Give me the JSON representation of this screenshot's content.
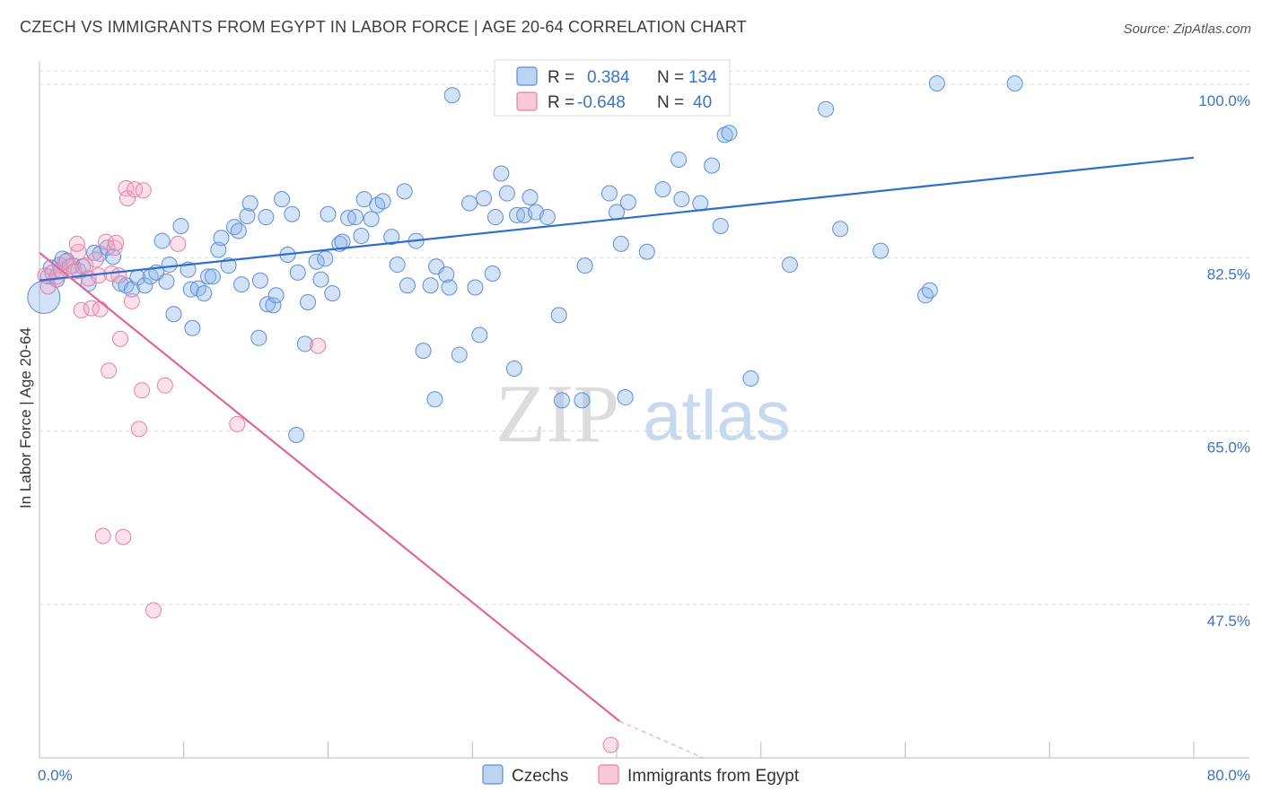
{
  "title": "CZECH VS IMMIGRANTS FROM EGYPT IN LABOR FORCE | AGE 20-64 CORRELATION CHART",
  "source": "Source: ZipAtlas.com",
  "watermark": {
    "zip": "ZIP",
    "atlas": "atlas"
  },
  "colors": {
    "czechs": "#5b8fd6",
    "egypt": "#e87fa6",
    "czechs_line": "#2f6fcc",
    "egypt_line": "#e0669a"
  },
  "chart_data": {
    "type": "scatter",
    "title": "CZECH VS IMMIGRANTS FROM EGYPT IN LABOR FORCE | AGE 20-64 CORRELATION CHART",
    "xlabel": "",
    "ylabel": "In Labor Force | Age 20-64",
    "xlim": [
      0,
      80
    ],
    "ylim": [
      32,
      102
    ],
    "x_tick_labels": [
      "0.0%",
      "80.0%"
    ],
    "y_ticks": [
      47.5,
      65.0,
      82.5,
      100.0
    ],
    "y_tick_labels": [
      "47.5%",
      "65.0%",
      "82.5%",
      "100.0%"
    ],
    "grid": true,
    "legend_placement": "top-center",
    "stats": [
      {
        "r_label": "R =",
        "r": "0.384",
        "n_label": "N =",
        "n": "134"
      },
      {
        "r_label": "R =",
        "r": "-0.648",
        "n_label": "N =",
        "n": "40"
      }
    ],
    "series": [
      {
        "name": "Czechs",
        "trend": {
          "x": [
            0,
            80
          ],
          "y": [
            80.2,
            92.6
          ]
        },
        "points": [
          [
            0.3,
            78.5
          ],
          [
            0.6,
            80.6
          ],
          [
            0.8,
            81.5
          ],
          [
            1.2,
            80.3
          ],
          [
            1.4,
            81.8
          ],
          [
            1.6,
            82.4
          ],
          [
            1.9,
            82.2
          ],
          [
            2.3,
            81.7
          ],
          [
            2.7,
            81.2
          ],
          [
            3.0,
            81.6
          ],
          [
            3.4,
            79.9
          ],
          [
            3.8,
            83.0
          ],
          [
            4.2,
            82.9
          ],
          [
            4.7,
            83.5
          ],
          [
            5.1,
            82.6
          ],
          [
            5.6,
            79.9
          ],
          [
            6.0,
            79.7
          ],
          [
            6.4,
            79.3
          ],
          [
            6.8,
            80.5
          ],
          [
            7.3,
            79.7
          ],
          [
            7.7,
            80.6
          ],
          [
            8.1,
            81.0
          ],
          [
            8.5,
            84.2
          ],
          [
            8.8,
            80.1
          ],
          [
            9.0,
            81.8
          ],
          [
            9.3,
            76.8
          ],
          [
            9.8,
            85.7
          ],
          [
            10.3,
            81.3
          ],
          [
            10.6,
            75.4
          ],
          [
            10.5,
            79.3
          ],
          [
            11.0,
            79.4
          ],
          [
            11.4,
            78.9
          ],
          [
            11.7,
            80.6
          ],
          [
            12.0,
            80.6
          ],
          [
            12.4,
            83.3
          ],
          [
            12.6,
            84.5
          ],
          [
            13.1,
            81.7
          ],
          [
            13.5,
            85.6
          ],
          [
            13.8,
            85.2
          ],
          [
            14.0,
            79.8
          ],
          [
            14.4,
            86.7
          ],
          [
            14.6,
            88.0
          ],
          [
            15.2,
            74.4
          ],
          [
            15.3,
            80.2
          ],
          [
            15.7,
            86.6
          ],
          [
            15.8,
            77.8
          ],
          [
            16.2,
            77.7
          ],
          [
            16.4,
            78.7
          ],
          [
            16.8,
            88.4
          ],
          [
            17.2,
            82.8
          ],
          [
            17.5,
            86.9
          ],
          [
            17.8,
            64.6
          ],
          [
            17.9,
            81.0
          ],
          [
            18.4,
            73.8
          ],
          [
            18.6,
            78.0
          ],
          [
            19.2,
            82.1
          ],
          [
            19.5,
            80.3
          ],
          [
            19.8,
            82.4
          ],
          [
            20.0,
            86.9
          ],
          [
            20.3,
            78.9
          ],
          [
            20.8,
            83.9
          ],
          [
            21.0,
            84.1
          ],
          [
            21.4,
            86.5
          ],
          [
            21.9,
            86.6
          ],
          [
            22.3,
            84.7
          ],
          [
            22.5,
            88.4
          ],
          [
            23.0,
            86.4
          ],
          [
            23.4,
            87.8
          ],
          [
            23.8,
            88.2
          ],
          [
            24.4,
            84.6
          ],
          [
            24.8,
            81.8
          ],
          [
            25.3,
            89.2
          ],
          [
            25.5,
            79.7
          ],
          [
            26.1,
            84.2
          ],
          [
            26.6,
            73.1
          ],
          [
            27.1,
            79.7
          ],
          [
            27.4,
            68.2
          ],
          [
            27.5,
            81.6
          ],
          [
            28.2,
            80.8
          ],
          [
            28.4,
            79.5
          ],
          [
            28.6,
            98.9
          ],
          [
            29.1,
            72.7
          ],
          [
            29.8,
            88.0
          ],
          [
            30.2,
            79.5
          ],
          [
            30.5,
            74.7
          ],
          [
            30.8,
            88.5
          ],
          [
            31.4,
            80.9
          ],
          [
            31.6,
            86.6
          ],
          [
            32.0,
            91.0
          ],
          [
            32.4,
            89.0
          ],
          [
            32.9,
            71.3
          ],
          [
            33.1,
            86.8
          ],
          [
            33.6,
            86.8
          ],
          [
            34.0,
            88.6
          ],
          [
            34.4,
            87.1
          ],
          [
            35.2,
            86.6
          ],
          [
            36.0,
            76.7
          ],
          [
            36.2,
            68.1
          ],
          [
            37.0,
            100.3
          ],
          [
            37.6,
            68.1
          ],
          [
            37.8,
            81.7
          ],
          [
            39.5,
            89.0
          ],
          [
            40.0,
            87.1
          ],
          [
            40.3,
            83.9
          ],
          [
            40.6,
            68.4
          ],
          [
            40.8,
            88.1
          ],
          [
            42.1,
            83.1
          ],
          [
            43.2,
            89.4
          ],
          [
            44.3,
            92.4
          ],
          [
            44.5,
            88.4
          ],
          [
            45.2,
            99.9
          ],
          [
            45.8,
            88.0
          ],
          [
            46.6,
            91.8
          ],
          [
            47.2,
            85.7
          ],
          [
            47.5,
            94.9
          ],
          [
            47.8,
            95.1
          ],
          [
            49.3,
            70.3
          ],
          [
            52.0,
            81.8
          ],
          [
            54.5,
            97.5
          ],
          [
            55.5,
            85.4
          ],
          [
            58.3,
            83.2
          ],
          [
            61.4,
            78.7
          ],
          [
            61.7,
            79.2
          ],
          [
            62.2,
            100.1
          ],
          [
            67.6,
            100.1
          ]
        ]
      },
      {
        "name": "Immigrants from Egypt",
        "trend": {
          "x": [
            0,
            40.2
          ],
          "y": [
            83.0,
            35.7
          ]
        },
        "trend_dashed": {
          "x": [
            40.2,
            46.0
          ],
          "y": [
            35.7,
            29.0
          ]
        },
        "points": [
          [
            0.4,
            80.7
          ],
          [
            0.6,
            79.6
          ],
          [
            0.9,
            81.0
          ],
          [
            1.2,
            80.6
          ],
          [
            1.5,
            81.2
          ],
          [
            1.8,
            82.1
          ],
          [
            2.1,
            81.6
          ],
          [
            2.4,
            81.1
          ],
          [
            2.7,
            83.1
          ],
          [
            2.6,
            83.9
          ],
          [
            2.9,
            77.2
          ],
          [
            3.2,
            81.7
          ],
          [
            3.4,
            80.4
          ],
          [
            3.6,
            77.4
          ],
          [
            3.9,
            82.3
          ],
          [
            4.1,
            80.7
          ],
          [
            4.2,
            77.3
          ],
          [
            4.4,
            54.4
          ],
          [
            4.6,
            84.1
          ],
          [
            4.8,
            71.1
          ],
          [
            5.0,
            80.9
          ],
          [
            5.2,
            83.5
          ],
          [
            5.3,
            84.0
          ],
          [
            5.5,
            80.7
          ],
          [
            5.6,
            74.3
          ],
          [
            5.8,
            54.3
          ],
          [
            6.0,
            89.5
          ],
          [
            6.1,
            88.5
          ],
          [
            6.4,
            78.1
          ],
          [
            6.6,
            89.4
          ],
          [
            6.9,
            65.2
          ],
          [
            7.1,
            69.1
          ],
          [
            7.2,
            89.3
          ],
          [
            7.9,
            46.9
          ],
          [
            8.7,
            69.6
          ],
          [
            9.6,
            83.9
          ],
          [
            13.7,
            65.7
          ],
          [
            19.3,
            73.6
          ],
          [
            39.6,
            33.3
          ]
        ]
      }
    ]
  },
  "legend_bottom": [
    {
      "label": "Czechs"
    },
    {
      "label": "Immigrants from Egypt"
    }
  ]
}
